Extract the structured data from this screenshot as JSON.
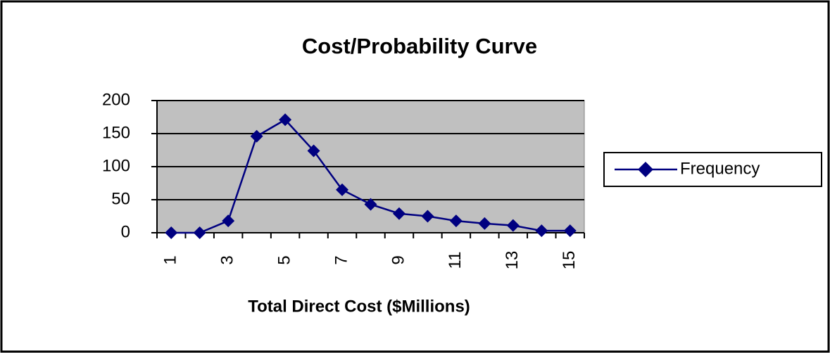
{
  "chart_data": {
    "type": "line",
    "title": "Cost/Probability Curve",
    "x_label": "Total Direct Cost ($Millions)",
    "categories": [
      "1",
      null,
      "3",
      null,
      "5",
      null,
      "7",
      null,
      "9",
      null,
      "11",
      null,
      "13",
      null,
      "15"
    ],
    "series": [
      {
        "name": "Frequency",
        "color": "#000080",
        "values": [
          0,
          0,
          18,
          146,
          171,
          124,
          65,
          43,
          29,
          25,
          18,
          14,
          11,
          3,
          3
        ]
      }
    ],
    "ylim": [
      0,
      200
    ],
    "yticks": [
      0,
      50,
      100,
      150,
      200
    ],
    "grid": true,
    "legend": "right",
    "plot_background": "#c0c0c0"
  }
}
